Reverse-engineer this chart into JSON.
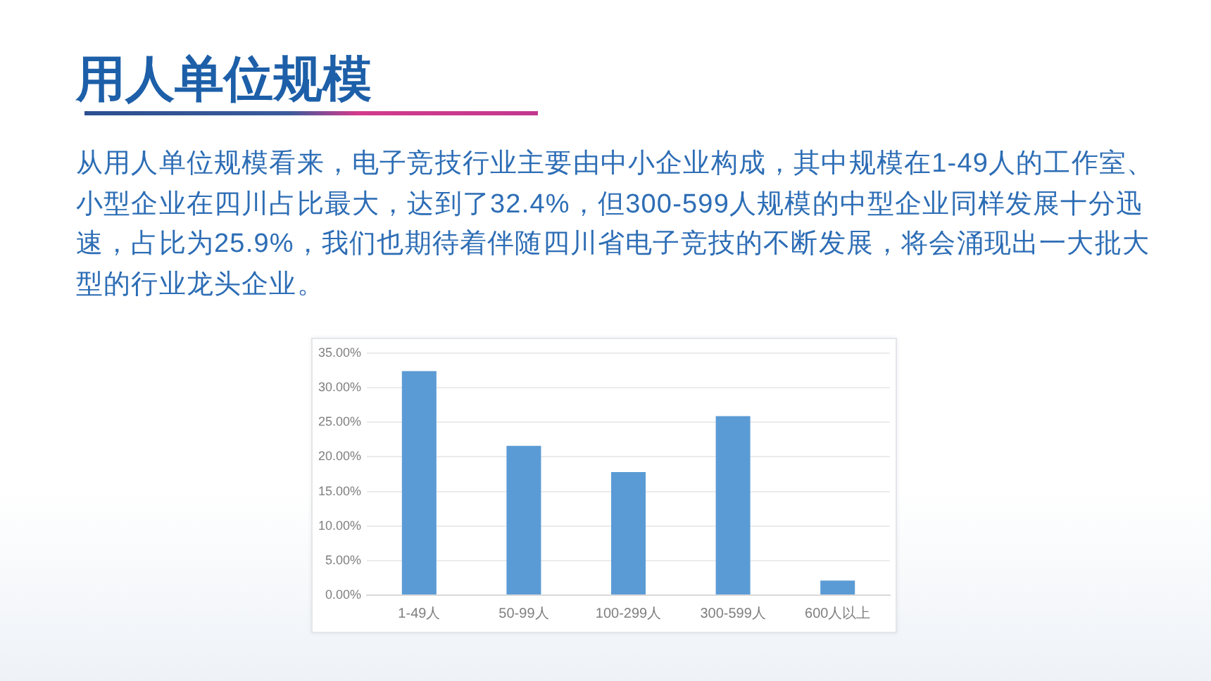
{
  "chart_data": {
    "type": "bar",
    "title": "用人单位规模",
    "subtitle": "从用人单位规模看来，电子竞技行业主要由中小企业构成，其中规模在1-49人的工作室、小型企业在四川占比最大，达到了32.4%，但300-599人规模的中型企业同样发展十分迅速，占比为25.9%，我们也期待着伴随四川省电子竞技的不断发展，将会涌现出一大批大型的行业龙头企业。",
    "categories": [
      "1-49人",
      "50-99人",
      "100-299人",
      "300-599人",
      "600人以上"
    ],
    "values": [
      32.4,
      21.6,
      17.8,
      25.9,
      2.1
    ],
    "color": "#5b9bd5",
    "ylim": [
      0,
      35
    ],
    "yticks": [
      {
        "value": 0,
        "label": "0.00%"
      },
      {
        "value": 5,
        "label": "5.00%"
      },
      {
        "value": 10,
        "label": "10.00%"
      },
      {
        "value": 15,
        "label": "15.00%"
      },
      {
        "value": 20,
        "label": "20.00%"
      },
      {
        "value": 25,
        "label": "25.00%"
      },
      {
        "value": 30,
        "label": "30.00%"
      },
      {
        "value": 35,
        "label": "35.00%"
      }
    ],
    "grid": "y",
    "legend": false
  }
}
